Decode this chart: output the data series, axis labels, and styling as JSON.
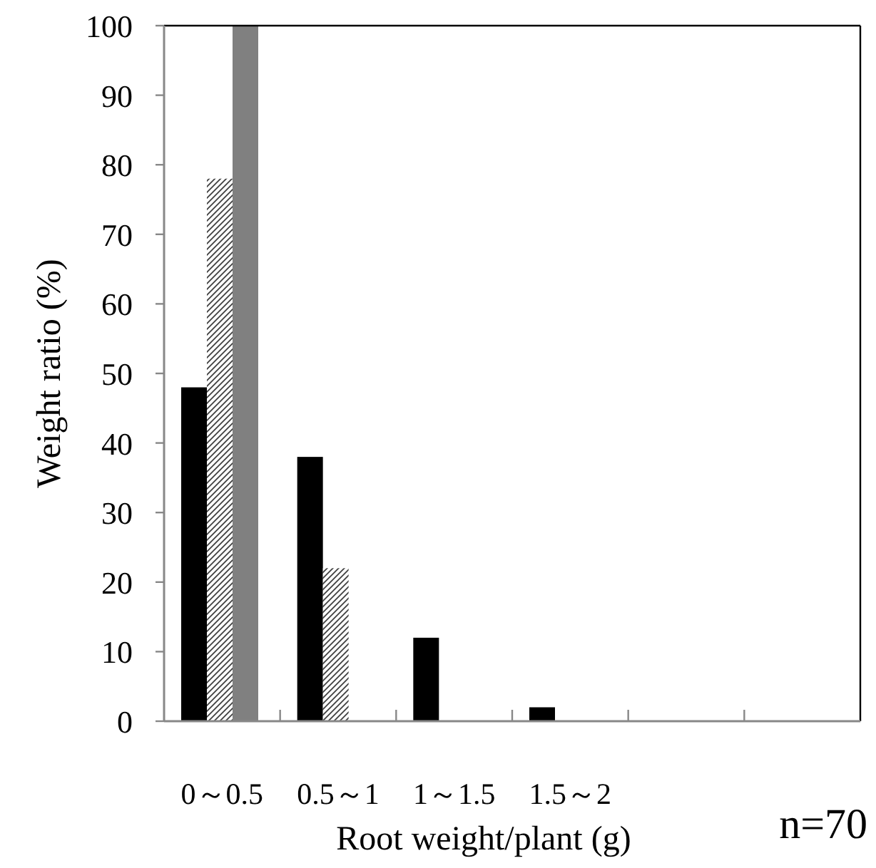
{
  "chart_data": {
    "type": "bar",
    "xlabel": "Root weight/plant (g)",
    "ylabel": "Weight ratio (%)",
    "annotations": [
      "n=70"
    ],
    "categories": [
      "0～0.5",
      "0.5～1",
      "1～1.5",
      "1.5～2",
      null,
      null
    ],
    "series": [
      {
        "color": "#000000",
        "values": [
          48,
          38,
          12,
          2,
          0,
          0
        ]
      },
      {
        "color": "#404040",
        "values": [
          78,
          22,
          0,
          0,
          0,
          0
        ]
      },
      {
        "color": "#808080",
        "values": [
          100,
          0,
          0,
          0,
          0,
          0
        ]
      }
    ],
    "ylim": [
      0,
      100
    ],
    "yticks": [
      0,
      10,
      20,
      30,
      40,
      50,
      60,
      70,
      80,
      90,
      100
    ]
  }
}
